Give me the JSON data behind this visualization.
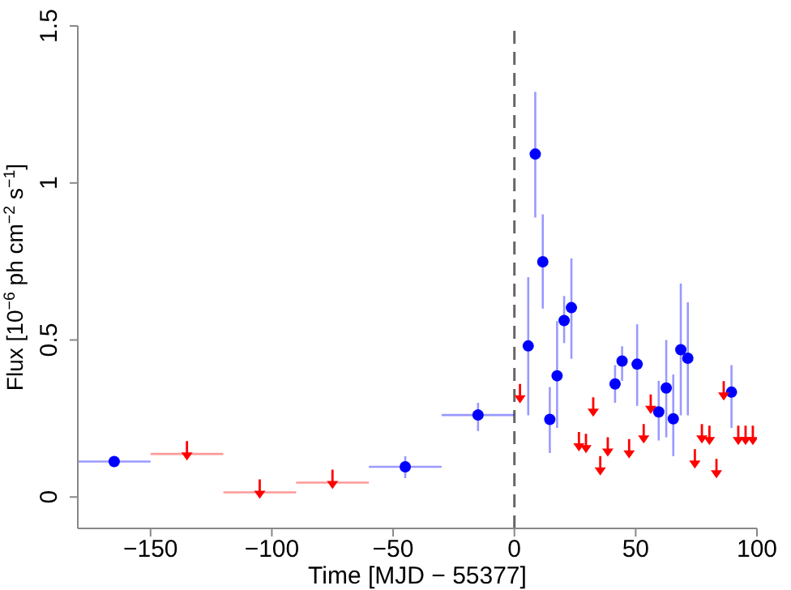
{
  "chart_data": {
    "type": "scatter",
    "xlabel": "Time [MJD − 55377]",
    "ylabel": "Flux [10$^{−6}$ ph cm$^{−2}$ s$^{−1}$]",
    "xlim": [
      -180,
      100
    ],
    "xticks": [
      -150,
      -100,
      -50,
      0,
      50,
      100
    ],
    "ylim": [
      -0.1,
      1.5
    ],
    "yticks": [
      0,
      0.5,
      1,
      1.5
    ],
    "grid": false,
    "legend": false,
    "ref_lines": [
      {
        "axis": "x",
        "value": 0,
        "color": "#666666",
        "line_style": "dashed"
      }
    ],
    "series": [
      {
        "type": "scatter",
        "marker": "circle",
        "color": "#0000ff",
        "x": [
          -165,
          -45,
          -15,
          5.7,
          8.6,
          11.7,
          14.6,
          17.6,
          20.5,
          23.5,
          41.5,
          44.4,
          50.6,
          59.5,
          62.6,
          65.5,
          68.6,
          71.5,
          89.5
        ],
        "values": [
          0.113,
          0.096,
          0.261,
          0.481,
          1.092,
          0.749,
          0.247,
          0.386,
          0.562,
          0.603,
          0.36,
          0.433,
          0.423,
          0.271,
          0.347,
          0.249,
          0.469,
          0.442,
          0.334
        ],
        "errors": [
          null,
          [
            0.06,
            0.13
          ],
          [
            0.21,
            0.3
          ],
          [
            0.26,
            0.7
          ],
          [
            0.89,
            1.29
          ],
          [
            0.6,
            0.9
          ],
          [
            0.14,
            0.35
          ],
          [
            0.22,
            0.56
          ],
          [
            0.49,
            0.64
          ],
          [
            0.44,
            0.76
          ],
          [
            0.3,
            0.42
          ],
          [
            0.37,
            0.48
          ],
          [
            0.29,
            0.55
          ],
          [
            0.18,
            0.37
          ],
          [
            0.19,
            0.5
          ],
          [
            0.13,
            0.39
          ],
          [
            0.26,
            0.68
          ],
          [
            0.26,
            0.62
          ],
          [
            0.22,
            0.42
          ]
        ],
        "xerrors": [
          15,
          15,
          15,
          null,
          null,
          null,
          null,
          null,
          null,
          null,
          null,
          null,
          null,
          null,
          null,
          null,
          null,
          null,
          null
        ]
      },
      {
        "type": "scatter",
        "marker": "triangle",
        "color": "#ff0000",
        "x": [
          -135,
          -105,
          -75,
          2.3,
          26.6,
          29.5,
          32.5,
          35.4,
          38.5,
          47.3,
          53.3,
          56.2,
          74.4,
          77.3,
          80.4,
          83.3,
          86.3,
          92.3,
          95.3,
          98.3
        ],
        "values": [
          0.137,
          0.015,
          0.046,
          0.319,
          0.166,
          0.16,
          0.276,
          0.089,
          0.149,
          0.143,
          0.191,
          0.285,
          0.111,
          0.191,
          0.186,
          0.08,
          0.328,
          0.186,
          0.186,
          0.186
        ],
        "xerrors": [
          15,
          15,
          15,
          null,
          null,
          null,
          null,
          null,
          null,
          null,
          null,
          null,
          null,
          null,
          null,
          null,
          null,
          null,
          null,
          null
        ]
      }
    ]
  }
}
